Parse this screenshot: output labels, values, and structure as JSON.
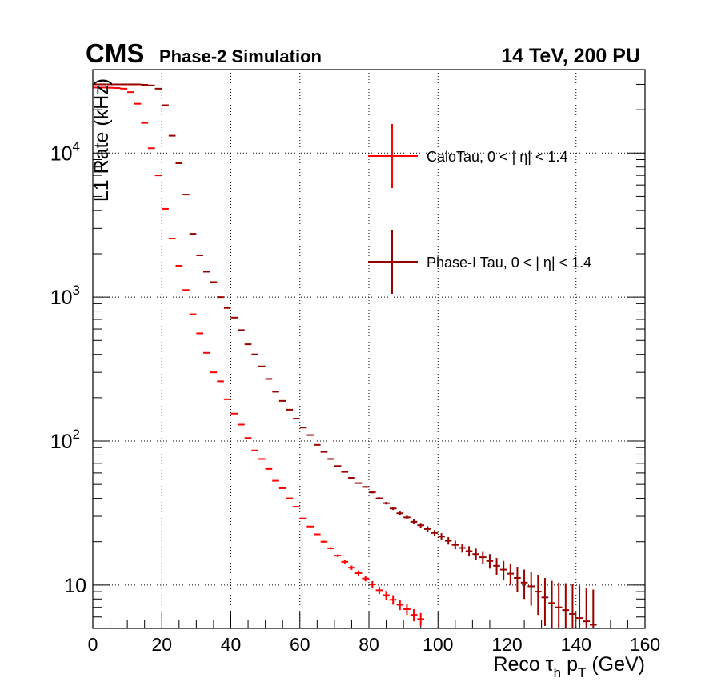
{
  "header": {
    "experiment": "CMS",
    "status": "Phase-2 Simulation",
    "energy_pu": "14 TeV, 200 PU"
  },
  "colors": {
    "calotau": "#ff0000",
    "phase1tau": "#990000",
    "grid": "#000000",
    "axis": "#000000"
  },
  "chart_data": {
    "type": "scatter",
    "title": "",
    "xlabel": "Reco τh pT (GeV)",
    "xlabel_parts": {
      "main": "Reco ",
      "tau": "τ",
      "tau_sub": "h",
      "p": " p",
      "p_sub": "T",
      "unit": " (GeV)"
    },
    "ylabel": "L1 Rate (kHz)",
    "xlim": [
      0,
      160
    ],
    "ylim": [
      5,
      38000
    ],
    "log_y": true,
    "grid": true,
    "legend_position": "top-right",
    "x_ticks": [
      0,
      20,
      40,
      60,
      80,
      100,
      120,
      140,
      160
    ],
    "x_tick_labels": [
      "0",
      "20",
      "40",
      "60",
      "80",
      "100",
      "120",
      "140",
      "160"
    ],
    "y_ticks": [
      {
        "value": 10,
        "base": "10",
        "exp": ""
      },
      {
        "value": 100,
        "base": "10",
        "exp": "2"
      },
      {
        "value": 1000,
        "base": "10",
        "exp": "3"
      },
      {
        "value": 10000,
        "base": "10",
        "exp": "4"
      }
    ],
    "bin_width": 2,
    "series": [
      {
        "name": "CaloTau, 0 < | η| < 1.4",
        "color": "#ff0000",
        "x": [
          1,
          3,
          5,
          7,
          9,
          11,
          13,
          15,
          17,
          19,
          21,
          23,
          25,
          27,
          29,
          31,
          33,
          35,
          37,
          39,
          41,
          43,
          45,
          47,
          49,
          51,
          53,
          55,
          57,
          59,
          61,
          63,
          65,
          67,
          69,
          71,
          73,
          75,
          77,
          79,
          81,
          83,
          85,
          87,
          89,
          91,
          93,
          95
        ],
        "y": [
          28500,
          28500,
          28400,
          28300,
          28000,
          26500,
          22000,
          16200,
          10800,
          7000,
          4100,
          2550,
          1650,
          1120,
          760,
          560,
          410,
          300,
          260,
          195,
          155,
          130,
          105,
          86,
          75,
          64,
          53,
          47,
          40,
          35,
          29,
          25.5,
          22.5,
          20,
          18,
          16,
          14.5,
          13.2,
          12.1,
          11.1,
          10.1,
          9.2,
          8.5,
          7.9,
          7.3,
          6.8,
          6.2,
          5.8
        ],
        "err": [
          0,
          0,
          0,
          0,
          0,
          0,
          0,
          0,
          0,
          0,
          0,
          0,
          0,
          0,
          0,
          0,
          0,
          0,
          0,
          0,
          0,
          0,
          0,
          0,
          0,
          0,
          0,
          0,
          0,
          0.2,
          0.2,
          0.2,
          0.3,
          0.3,
          0.3,
          0.35,
          0.4,
          0.45,
          0.5,
          0.5,
          0.55,
          0.55,
          0.6,
          0.6,
          0.6,
          0.6,
          0.6,
          0.6
        ]
      },
      {
        "name": "Phase-I Tau, 0 < | η| < 1.4",
        "color": "#990000",
        "x": [
          1,
          3,
          5,
          7,
          9,
          11,
          13,
          15,
          17,
          19,
          21,
          23,
          25,
          27,
          29,
          31,
          33,
          35,
          37,
          39,
          41,
          43,
          45,
          47,
          49,
          51,
          53,
          55,
          57,
          59,
          61,
          63,
          65,
          67,
          69,
          71,
          73,
          75,
          77,
          79,
          81,
          83,
          85,
          87,
          89,
          91,
          93,
          95,
          97,
          99,
          101,
          103,
          105,
          107,
          109,
          111,
          113,
          115,
          117,
          119,
          121,
          123,
          125,
          127,
          129,
          131,
          133,
          135,
          137,
          139,
          141,
          143,
          145
        ],
        "y": [
          30000,
          30000,
          30000,
          30000,
          30000,
          30000,
          30000,
          29800,
          29500,
          28000,
          21500,
          13200,
          8500,
          5150,
          2750,
          1950,
          1500,
          1270,
          1000,
          840,
          720,
          590,
          470,
          400,
          330,
          270,
          220,
          190,
          165,
          143,
          124,
          110,
          94,
          84,
          75,
          67,
          61,
          55.5,
          51,
          48,
          44,
          40,
          37,
          34,
          31.5,
          29.5,
          27.5,
          26,
          24.5,
          23,
          21.7,
          20.3,
          19,
          18.1,
          17.2,
          16.4,
          15.6,
          14.7,
          13.6,
          12.8,
          12.0,
          11.2,
          10.4,
          9.8,
          9.0,
          8.2,
          7.5,
          7.0,
          6.7,
          6.3,
          5.9,
          5.6,
          5.3
        ],
        "err": [
          0,
          0,
          0,
          0,
          0,
          0,
          0,
          0,
          0,
          0,
          0,
          0,
          0,
          0,
          0,
          0,
          0,
          0,
          0,
          0,
          0,
          0,
          0,
          0,
          0,
          0,
          0,
          0,
          0,
          0,
          0,
          0,
          0,
          0,
          0,
          0,
          0.5,
          0.5,
          0.6,
          0.6,
          0.7,
          0.7,
          0.8,
          0.8,
          0.9,
          0.9,
          1.0,
          1.0,
          1.1,
          1.1,
          1.2,
          1.2,
          1.3,
          1.3,
          1.4,
          1.5,
          1.6,
          1.7,
          1.8,
          1.9,
          2.0,
          2.2,
          2.4,
          2.6,
          2.8,
          3.0,
          3.2,
          3.4,
          3.6,
          3.8,
          4.0,
          4.0,
          4.0
        ]
      }
    ]
  }
}
